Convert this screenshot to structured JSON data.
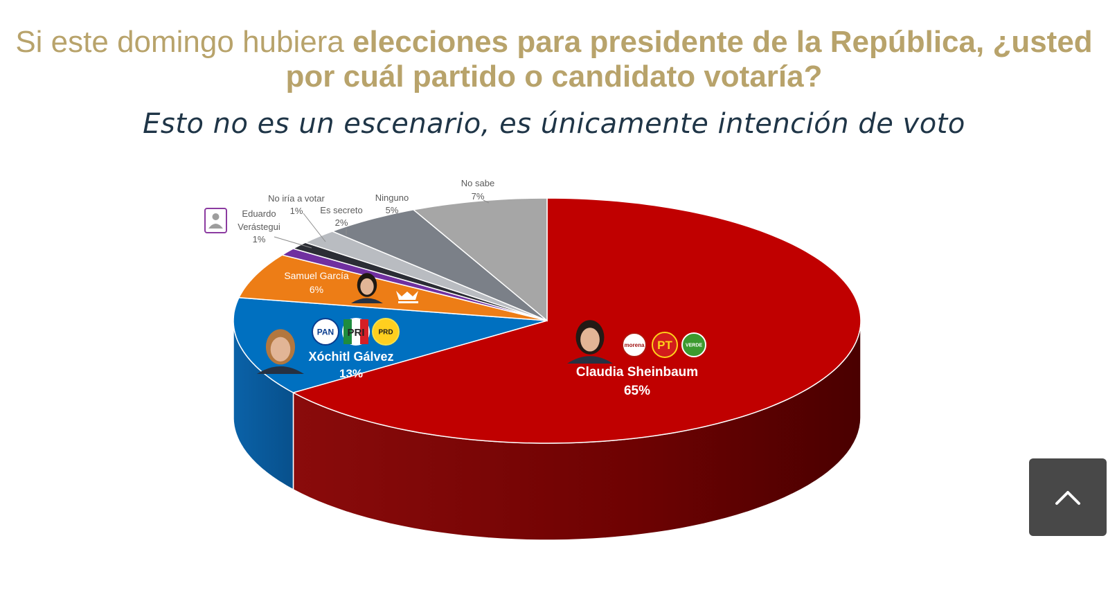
{
  "title": {
    "part1": "Si este domingo hubiera ",
    "part2": "elecciones para presidente de la República, ¿usted",
    "part3": "por cuál partido o candidato votaría?"
  },
  "subtitle": "Esto no es un escenario, es únicamente intención de voto",
  "colors": {
    "title": "#b8a36b",
    "subtitle": "#1f3547",
    "sheinbaum": "#c00000",
    "galvez": "#0070c0",
    "garcia": "#ed7d16",
    "verastegui": "#7030a0",
    "no_iria": "#2b2d35",
    "secreto": "#b9bcc1",
    "ninguno": "#7b8088",
    "no_sabe": "#a6a6a6"
  },
  "chart_data": {
    "type": "pie",
    "title": "Si este domingo hubiera elecciones para presidente de la República, ¿usted por cuál partido o candidato votaría?",
    "slices": [
      {
        "name": "Claudia Sheinbaum",
        "value": 65,
        "label": "65%",
        "parties": [
          "morena",
          "PT",
          "VERDE"
        ]
      },
      {
        "name": "Xóchitl Gálvez",
        "value": 13,
        "label": "13%",
        "parties": [
          "PAN",
          "PRI",
          "PRD"
        ]
      },
      {
        "name": "Samuel García",
        "value": 6,
        "label": "6%",
        "parties": [
          "Movimiento Ciudadano"
        ]
      },
      {
        "name": "Eduardo Verástegui",
        "value": 1,
        "label": "1%",
        "parties": []
      },
      {
        "name": "No iría a votar",
        "value": 1,
        "label": "1%",
        "parties": []
      },
      {
        "name": "Es secreto",
        "value": 2,
        "label": "2%",
        "parties": []
      },
      {
        "name": "Ninguno",
        "value": 5,
        "label": "5%",
        "parties": []
      },
      {
        "name": "No sabe",
        "value": 7,
        "label": "7%",
        "parties": []
      }
    ],
    "verastegui_name_lines": [
      "Eduardo",
      "Verástegui"
    ]
  },
  "party_logos": {
    "morena": "morena",
    "pt": "PT",
    "verde": "VERDE",
    "pan": "PAN",
    "pri": "PRI",
    "prd": "PRD"
  },
  "scroll_top": {
    "icon": "chevron-up-icon"
  }
}
